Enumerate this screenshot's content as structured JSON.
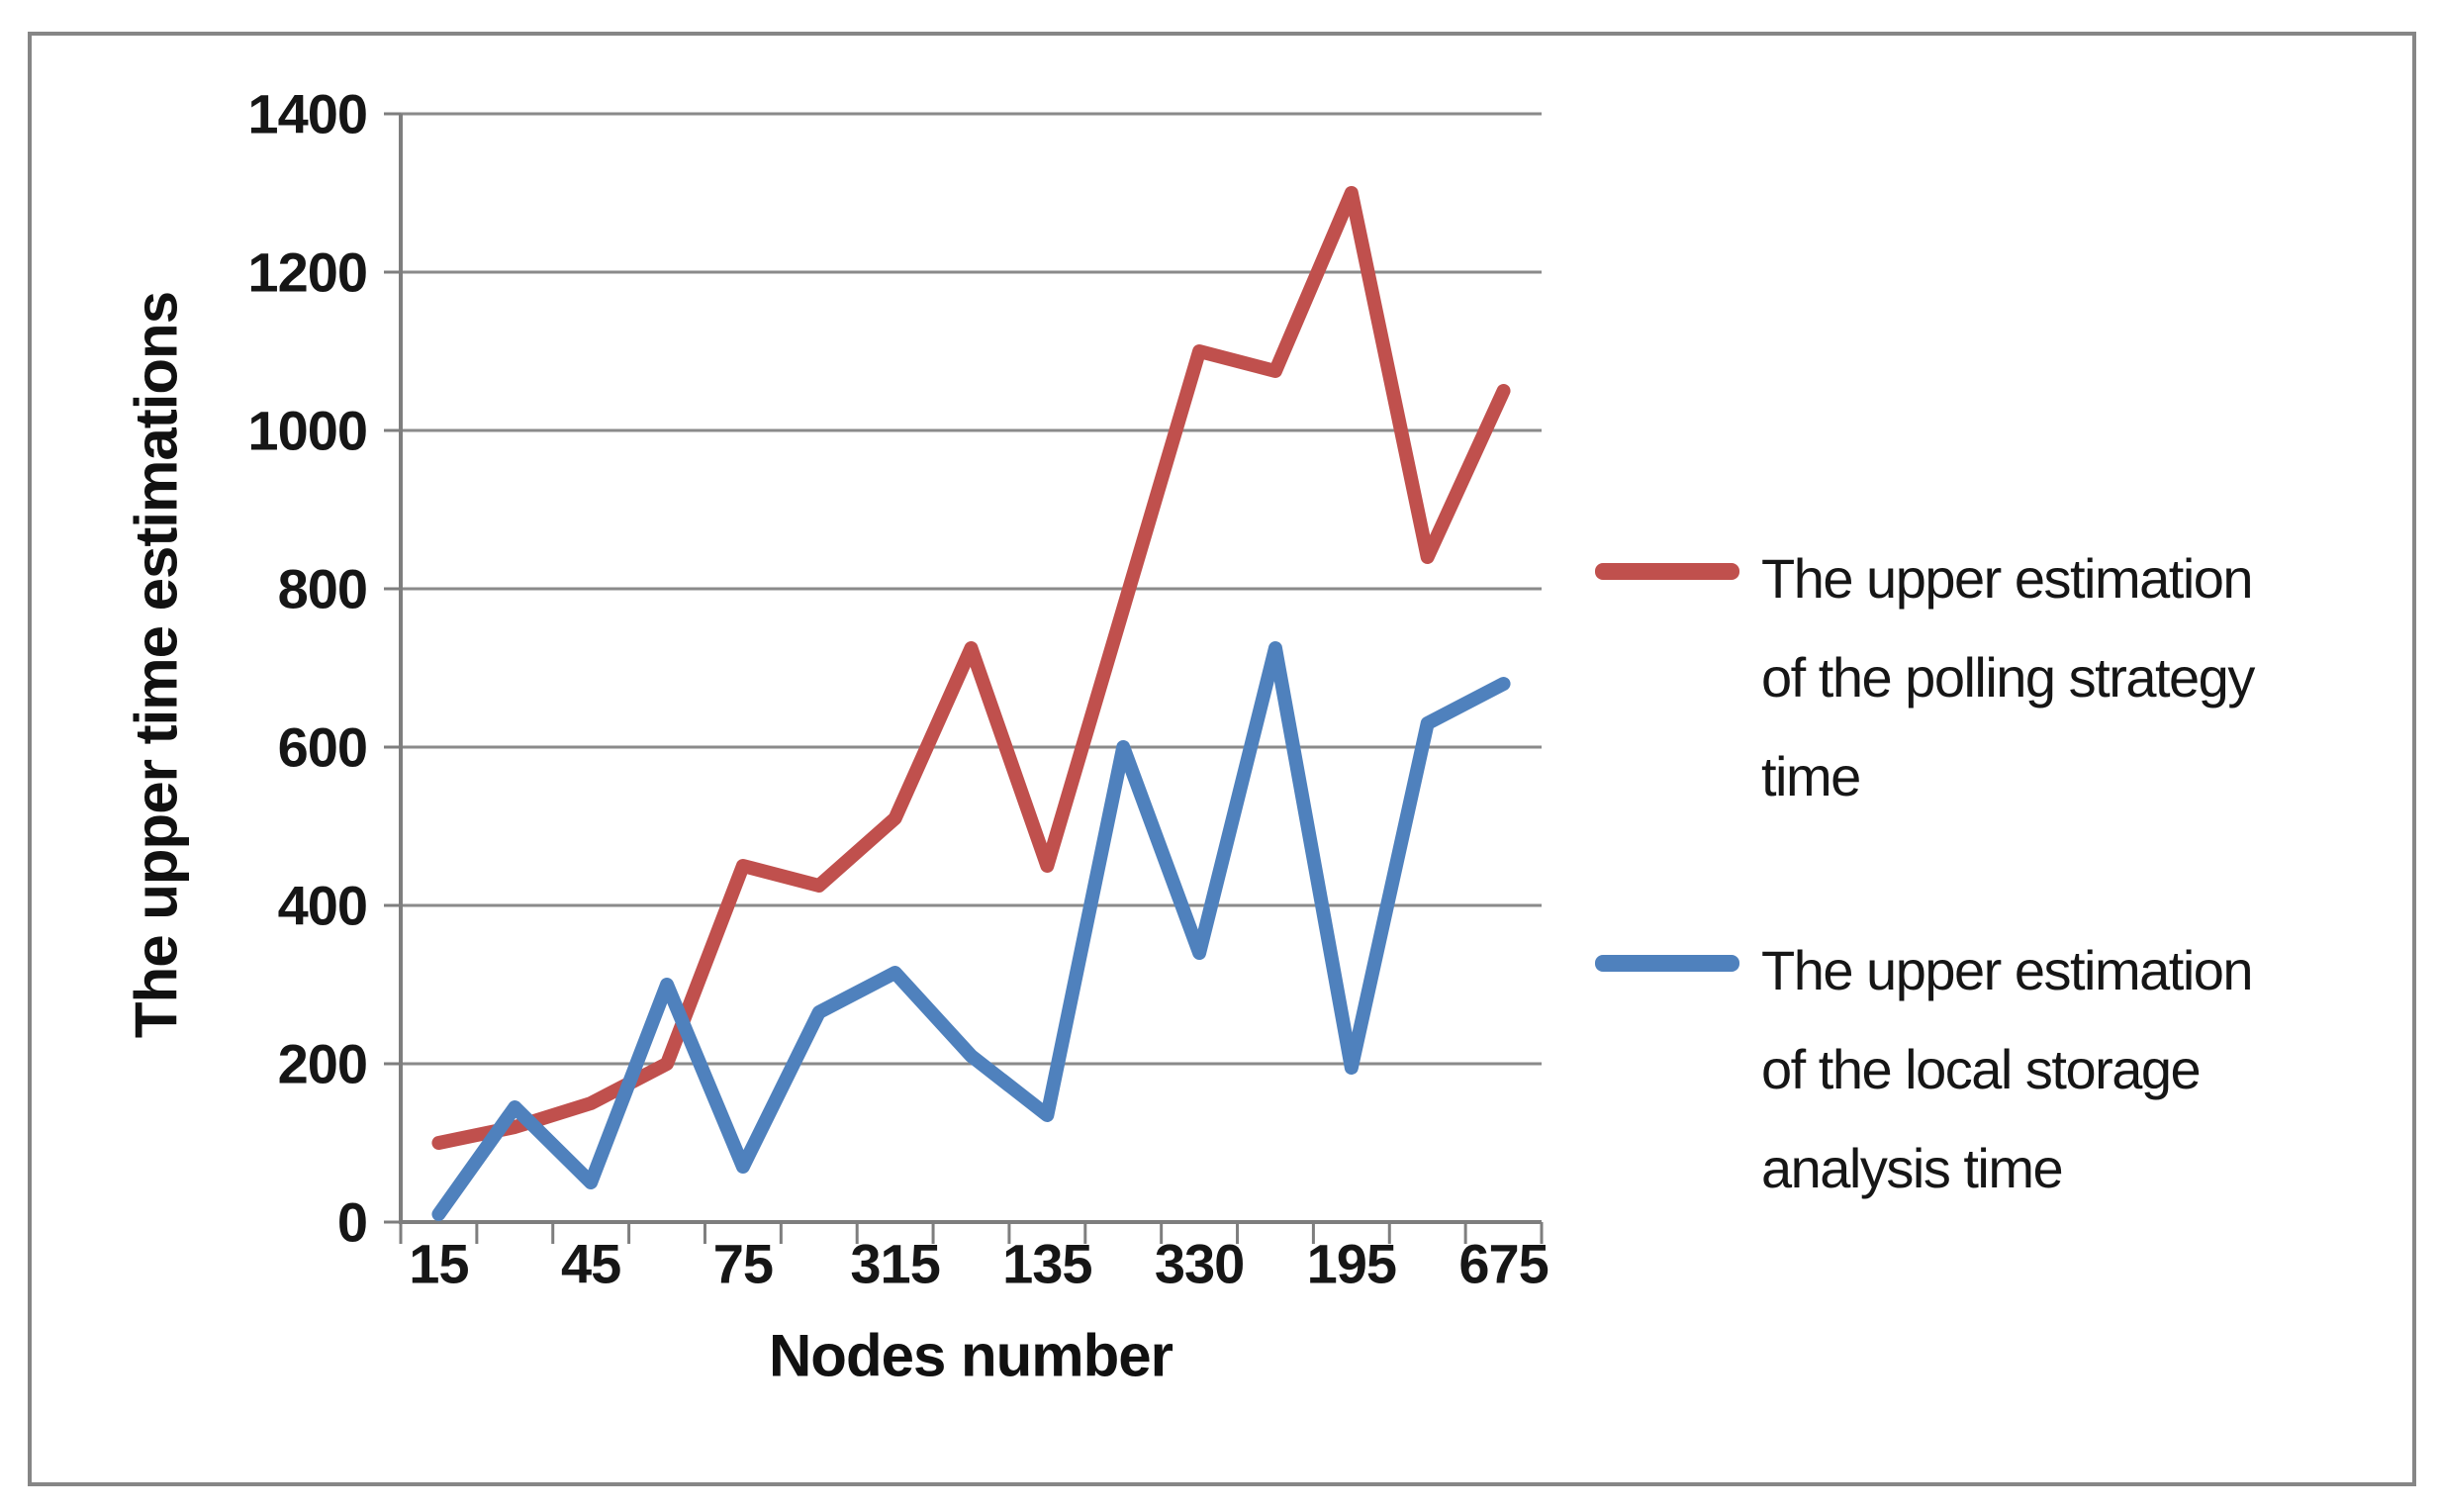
{
  "figure": {
    "background_color": "#ffffff",
    "frame_border_color": "#868686"
  },
  "chart_data": {
    "type": "line",
    "title": "",
    "categories": [
      "15",
      "",
      "45",
      "",
      "75",
      "",
      "315",
      "",
      "135",
      "",
      "330",
      "",
      "195",
      "",
      "675"
    ],
    "x_tick_labels_visible": [
      "15",
      "45",
      "75",
      "315",
      "135",
      "330",
      "195",
      "675"
    ],
    "series": [
      {
        "name": "The upper estimation of the polling strategy time",
        "name_lines": [
          "The upper estimation",
          "of the polling strategy",
          "time"
        ],
        "color": "#C0504D",
        "values": [
          100,
          120,
          150,
          200,
          450,
          425,
          510,
          725,
          450,
          775,
          1100,
          1075,
          1300,
          840,
          1050
        ]
      },
      {
        "name": "The upper estimation of the local storage analysis time",
        "name_lines": [
          "The upper estimation",
          "of the local storage",
          "analysis time"
        ],
        "color": "#4F81BD",
        "values": [
          10,
          145,
          50,
          300,
          70,
          265,
          315,
          210,
          135,
          600,
          340,
          725,
          195,
          630,
          680
        ]
      }
    ],
    "xlabel": "Nodes number",
    "ylabel": "The upper time estimations",
    "ylim": [
      0,
      1400
    ],
    "y_ticks": [
      0,
      200,
      400,
      600,
      800,
      1000,
      1200,
      1400
    ],
    "grid": "horizontal",
    "legend_position": "right",
    "axis_color": "#7e7e7e",
    "gridline_color": "#8a8a8a",
    "text_color": "#161616"
  }
}
